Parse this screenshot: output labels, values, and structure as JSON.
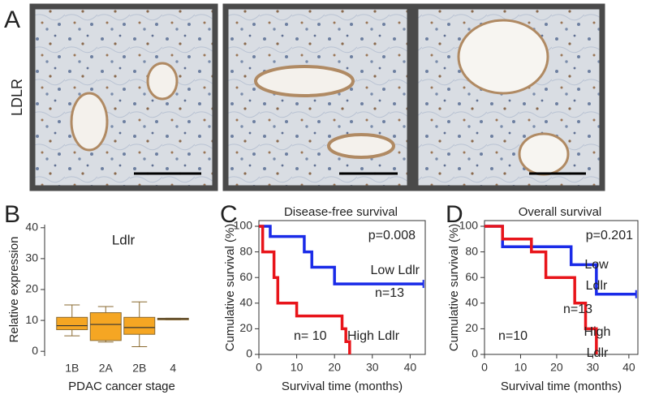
{
  "panel_labels": [
    "A",
    "B",
    "C",
    "D"
  ],
  "row_label": "LDLR",
  "chart_data": [
    {
      "type": "box",
      "title": "Ldlr",
      "y_label": "Relative expression",
      "x_label": "PDAC cancer stage",
      "categories": [
        "1B",
        "2A",
        "2B",
        "4"
      ],
      "boxes": [
        {
          "min": 5,
          "q1": 7,
          "median": 8.3,
          "q3": 11,
          "max": 15
        },
        {
          "min": 3,
          "q1": 3.5,
          "median": 8.7,
          "q3": 12.5,
          "max": 14.5
        },
        {
          "min": 1.5,
          "q1": 5.5,
          "median": 7.7,
          "q3": 11,
          "max": 16
        },
        {
          "min": 10.2,
          "q1": 10.2,
          "median": 10.5,
          "q3": 10.7,
          "max": 10.7
        }
      ],
      "color": "#f5a623",
      "ylim": [
        -1,
        41
      ],
      "yticks": [
        0,
        10,
        20,
        30,
        40
      ]
    },
    {
      "type": "step",
      "title": "Disease-free survival",
      "x_label": "Survival time (months)",
      "y_label": "Cumulative survival (%)",
      "series": [
        {
          "color": "#1a2be8",
          "x": [
            0,
            3,
            12,
            14,
            20,
            43.5
          ],
          "values": [
            100,
            92,
            80,
            68,
            55,
            55
          ]
        },
        {
          "color": "#e8141a",
          "x": [
            0,
            1,
            4,
            5,
            10,
            22,
            23,
            24
          ],
          "values": [
            100,
            80,
            60,
            40,
            30,
            20,
            10,
            0
          ]
        }
      ],
      "annotations": [
        "p=0.008",
        "Low Ldlr",
        "n=13",
        "n= 10",
        "High Ldlr"
      ],
      "xlim": [
        0,
        44
      ],
      "xticks": [
        0,
        10,
        20,
        30,
        40
      ],
      "ylim": [
        0,
        100
      ],
      "yticks": [
        0,
        20,
        40,
        60,
        80,
        100
      ]
    },
    {
      "type": "step",
      "title": "Overall survival",
      "x_label": "Survival time (months)",
      "y_label": "Cumulative survival (%)",
      "series": [
        {
          "color": "#1a2be8",
          "x": [
            0,
            5,
            24,
            31,
            42
          ],
          "values": [
            100,
            84,
            70,
            47,
            47
          ]
        },
        {
          "color": "#e8141a",
          "x": [
            0,
            5,
            13,
            17,
            25,
            28,
            31
          ],
          "values": [
            100,
            90,
            80,
            60,
            40,
            20,
            0
          ]
        }
      ],
      "annotations": [
        "p=0.201",
        "Low",
        "Ldlr",
        "n=13",
        "n=10",
        "High",
        "Ldlr"
      ],
      "xlim": [
        0,
        42.5
      ],
      "xticks": [
        0,
        10,
        20,
        30,
        40
      ],
      "ylim": [
        0,
        100
      ],
      "yticks": [
        0,
        20,
        40,
        60,
        80,
        100
      ]
    }
  ]
}
